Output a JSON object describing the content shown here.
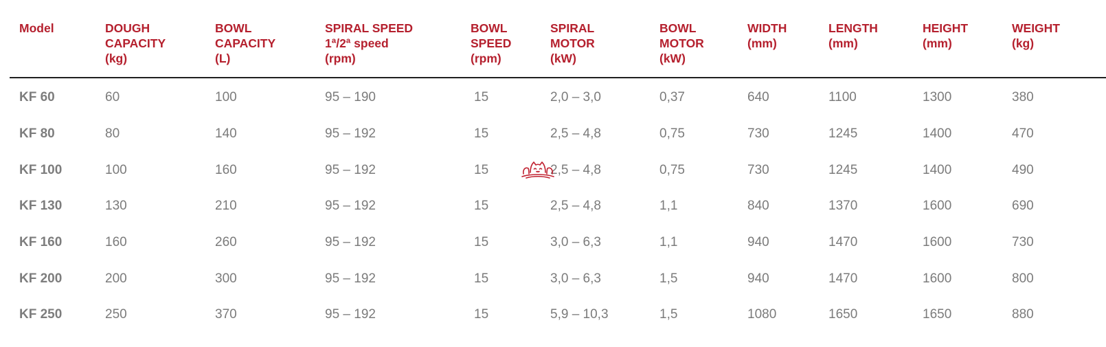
{
  "table": {
    "headers": [
      "Model",
      "DOUGH\nCAPACITY\n(kg)",
      "BOWL\nCAPACITY\n(L)",
      "SPIRAL SPEED\n1ª/2ª speed\n(rpm)",
      "BOWL\nSPEED\n(rpm)",
      "SPIRAL\nMOTOR\n(kW)",
      "BOWL\nMOTOR\n(kW)",
      "WIDTH\n(mm)",
      "LENGTH\n(mm)",
      "HEIGHT\n(mm)",
      "WEIGHT\n(kg)"
    ],
    "rows": [
      [
        "KF 60",
        "60",
        "100",
        "95 – 190",
        "15",
        "2,0 – 3,0",
        "0,37",
        "640",
        "1100",
        "1300",
        "380"
      ],
      [
        "KF 80",
        "80",
        "140",
        "95 – 192",
        "15",
        "2,5 – 4,8",
        "0,75",
        "730",
        "1245",
        "1400",
        "470"
      ],
      [
        "KF 100",
        "100",
        "160",
        "95 – 192",
        "15",
        "2,5 – 4,8",
        "0,75",
        "730",
        "1245",
        "1400",
        "490"
      ],
      [
        "KF 130",
        "130",
        "210",
        "95 – 192",
        "15",
        "2,5 – 4,8",
        "1,1",
        "840",
        "1370",
        "1600",
        "690"
      ],
      [
        "KF 160",
        "160",
        "260",
        "95 – 192",
        "15",
        "3,0 – 6,3",
        "1,1",
        "940",
        "1470",
        "1600",
        "730"
      ],
      [
        "KF 200",
        "200",
        "300",
        "95 – 192",
        "15",
        "3,0 – 6,3",
        "1,5",
        "940",
        "1470",
        "1600",
        "800"
      ],
      [
        "KF 250",
        "250",
        "370",
        "95 – 192",
        "15",
        "5,9 – 10,3",
        "1,5",
        "1080",
        "1650",
        "1650",
        "880"
      ]
    ]
  },
  "overlay": {
    "icon": "cat-mascot-icon",
    "color": "#c0202f"
  },
  "colors": {
    "header_text": "#b5202e",
    "body_text": "#7b7b7b",
    "rule": "#1f1f1f"
  }
}
